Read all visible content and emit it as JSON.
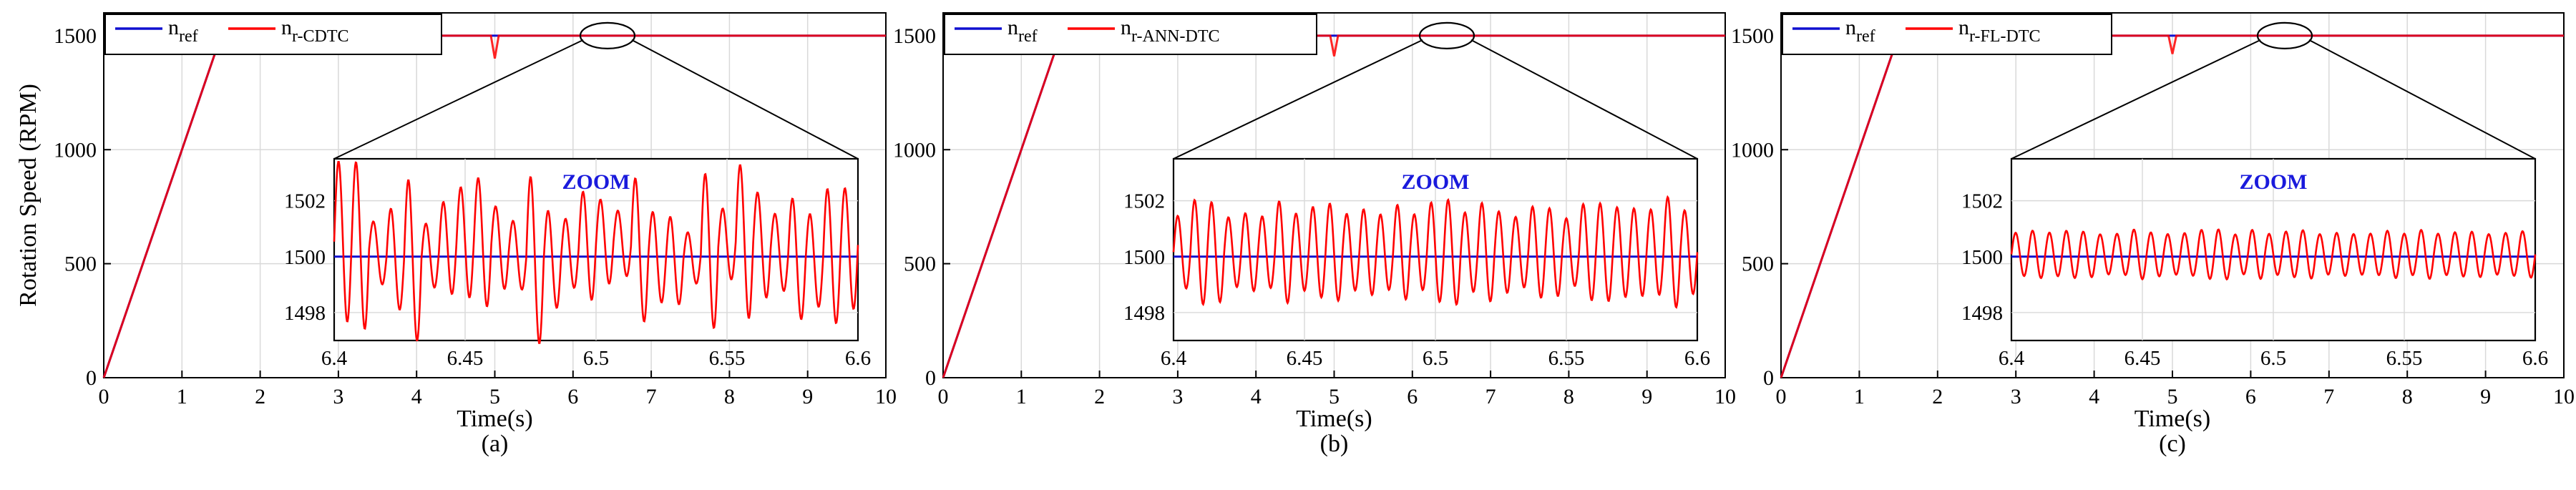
{
  "figure": {
    "ylabel": "Rotation Speed (RPM)",
    "xlabel": "Time(s)",
    "zoom_title": "ZOOM",
    "colors": {
      "ref": "#1010d0",
      "actual": "#ff0000",
      "zoom_title": "#1a1adc",
      "grid": "#d9d9d9"
    }
  },
  "chart_data": [
    {
      "type": "line",
      "caption": "(a)",
      "xlim": [
        0,
        10
      ],
      "ylim": [
        0,
        1600
      ],
      "xticks": [
        0,
        1,
        2,
        3,
        4,
        5,
        6,
        7,
        8,
        9,
        10
      ],
      "yticks": [
        0,
        500,
        1000,
        1500
      ],
      "legend": [
        "n",
        "ref",
        "n",
        "r-CDTC"
      ],
      "series": [
        {
          "name": "nref",
          "x": [
            0,
            1.5,
            10
          ],
          "y": [
            0,
            1500,
            1500
          ]
        },
        {
          "name": "nr-CDTC",
          "x": [
            0,
            1.5,
            4.95,
            5.0,
            5.05,
            10
          ],
          "y": [
            0,
            1500,
            1500,
            1400,
            1500,
            1500
          ]
        }
      ],
      "zoom": {
        "xlim": [
          6.4,
          6.6
        ],
        "ylim": [
          1497,
          1503.5
        ],
        "xticks": [
          6.4,
          6.45,
          6.5,
          6.55,
          6.6
        ],
        "yticks": [
          1498,
          1500,
          1502
        ],
        "ref": 1500,
        "ripple_amplitude": 2.0,
        "ripple_cycles": 30
      }
    },
    {
      "type": "line",
      "caption": "(b)",
      "xlim": [
        0,
        10
      ],
      "ylim": [
        0,
        1600
      ],
      "xticks": [
        0,
        1,
        2,
        3,
        4,
        5,
        6,
        7,
        8,
        9,
        10
      ],
      "yticks": [
        0,
        500,
        1000,
        1500
      ],
      "legend": [
        "n",
        "ref",
        "n",
        "r-ANN-DTC"
      ],
      "series": [
        {
          "name": "nref",
          "x": [
            0,
            1.5,
            10
          ],
          "y": [
            0,
            1500,
            1500
          ]
        },
        {
          "name": "nr-ANN-DTC",
          "x": [
            0,
            1.5,
            4.95,
            5.0,
            5.05,
            10
          ],
          "y": [
            0,
            1500,
            1500,
            1410,
            1500,
            1500
          ]
        }
      ],
      "zoom": {
        "xlim": [
          6.4,
          6.6
        ],
        "ylim": [
          1497,
          1503.5
        ],
        "xticks": [
          6.4,
          6.45,
          6.5,
          6.55,
          6.6
        ],
        "yticks": [
          1498,
          1500,
          1502
        ],
        "ref": 1500,
        "ripple_amplitude": 1.6,
        "ripple_cycles": 31
      }
    },
    {
      "type": "line",
      "caption": "(c)",
      "xlim": [
        0,
        10
      ],
      "ylim": [
        0,
        1600
      ],
      "xticks": [
        0,
        1,
        2,
        3,
        4,
        5,
        6,
        7,
        8,
        9,
        10
      ],
      "yticks": [
        0,
        500,
        1000,
        1500
      ],
      "legend": [
        "n",
        "ref",
        "n",
        "r-FL-DTC"
      ],
      "series": [
        {
          "name": "nref",
          "x": [
            0,
            1.5,
            10
          ],
          "y": [
            0,
            1500,
            1500
          ]
        },
        {
          "name": "nr-FL-DTC",
          "x": [
            0,
            1.5,
            4.95,
            5.0,
            5.05,
            10
          ],
          "y": [
            0,
            1500,
            1500,
            1420,
            1500,
            1500
          ]
        }
      ],
      "zoom": {
        "xlim": [
          6.4,
          6.6
        ],
        "ylim": [
          1497,
          1503.5
        ],
        "xticks": [
          6.4,
          6.45,
          6.5,
          6.55,
          6.6
        ],
        "yticks": [
          1498,
          1500,
          1502
        ],
        "ref": 1500,
        "ripple_amplitude": 0.8,
        "ripple_cycles": 31
      }
    }
  ]
}
